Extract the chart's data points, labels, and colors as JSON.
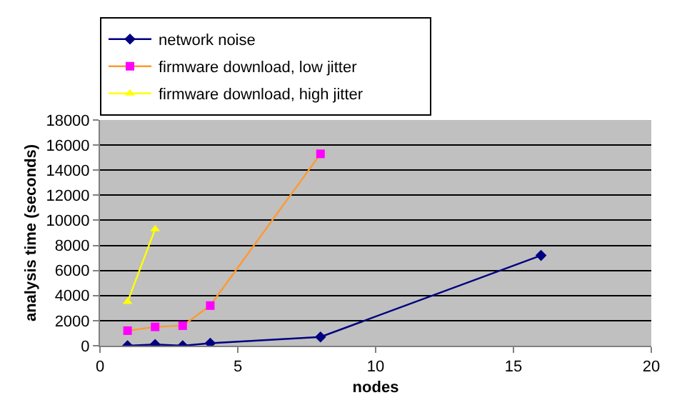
{
  "chart_data": {
    "type": "line",
    "xlabel": "nodes",
    "ylabel": "analysis time (seconds)",
    "xlim": [
      0,
      20
    ],
    "xticks": [
      0,
      5,
      10,
      15,
      20
    ],
    "ylim": [
      0,
      18000
    ],
    "yticks": [
      0,
      2000,
      4000,
      6000,
      8000,
      10000,
      12000,
      14000,
      16000,
      18000
    ],
    "grid": "y",
    "legend": "top",
    "series": [
      {
        "name": "network noise",
        "color": "#000080",
        "marker": "diamond",
        "x": [
          1,
          2,
          3,
          4,
          8,
          16
        ],
        "values": [
          0,
          100,
          0,
          200,
          700,
          7200
        ]
      },
      {
        "name": "firmware download, low jitter",
        "color": "#ff9933",
        "colors": [
          "#ff00ff",
          "#ff00ff",
          "#ff00ff",
          "#ff00ff",
          "#ff00ff"
        ],
        "marker": "square",
        "x": [
          1,
          2,
          3,
          4,
          8
        ],
        "values": [
          1200,
          1500,
          1600,
          3200,
          15300
        ]
      },
      {
        "name": "firmware download, high jitter",
        "color": "#ffff00",
        "marker": "triangle",
        "x": [
          1,
          2
        ],
        "values": [
          3500,
          9300
        ]
      }
    ]
  }
}
